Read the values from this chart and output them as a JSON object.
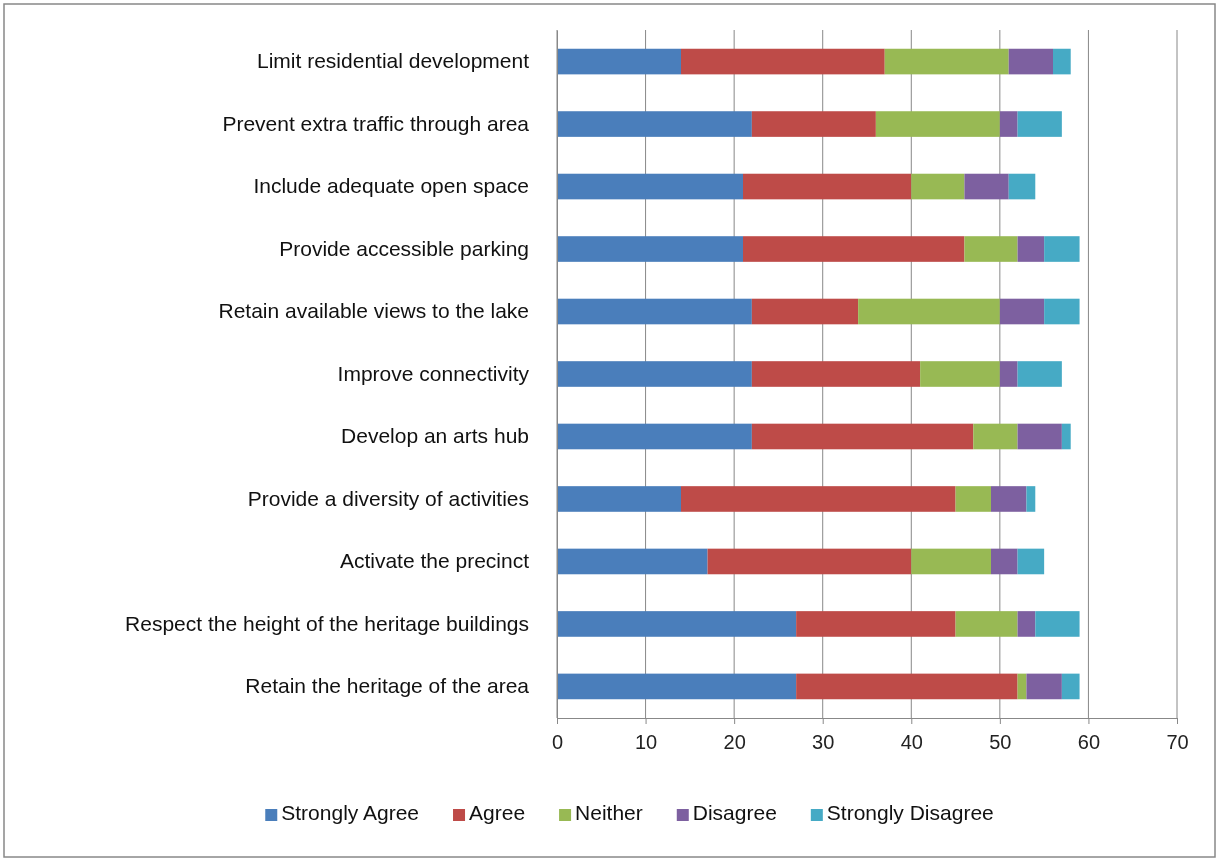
{
  "chart_data": {
    "type": "bar",
    "orientation": "horizontal",
    "stacked": true,
    "categories": [
      "Limit residential development",
      "Prevent extra traffic through area",
      "Include adequate open space",
      "Provide accessible parking",
      "Retain available views to the lake",
      "Improve connectivity",
      "Develop an arts hub",
      "Provide a diversity of activities",
      "Activate the precinct",
      "Respect the height of the heritage buildings",
      "Retain the heritage of the area"
    ],
    "series": [
      {
        "name": "Strongly Agree",
        "color": "#4a7ebb",
        "values": [
          14,
          22,
          21,
          21,
          22,
          22,
          22,
          14,
          17,
          27,
          27
        ]
      },
      {
        "name": "Agree",
        "color": "#be4b48",
        "values": [
          23,
          14,
          19,
          25,
          12,
          19,
          25,
          31,
          23,
          18,
          25
        ]
      },
      {
        "name": "Neither",
        "color": "#98b954",
        "values": [
          14,
          14,
          6,
          6,
          16,
          9,
          5,
          4,
          9,
          7,
          1
        ]
      },
      {
        "name": "Disagree",
        "color": "#7d60a0",
        "values": [
          5,
          2,
          5,
          3,
          5,
          2,
          5,
          4,
          3,
          2,
          4
        ]
      },
      {
        "name": "Strongly Disagree",
        "color": "#46aac5",
        "values": [
          2,
          5,
          3,
          4,
          4,
          5,
          1,
          1,
          3,
          5,
          2
        ]
      }
    ],
    "xlim": [
      0,
      70
    ],
    "xticks": [
      0,
      10,
      20,
      30,
      40,
      50,
      60,
      70
    ],
    "grid": "x",
    "legend": "bottom"
  }
}
